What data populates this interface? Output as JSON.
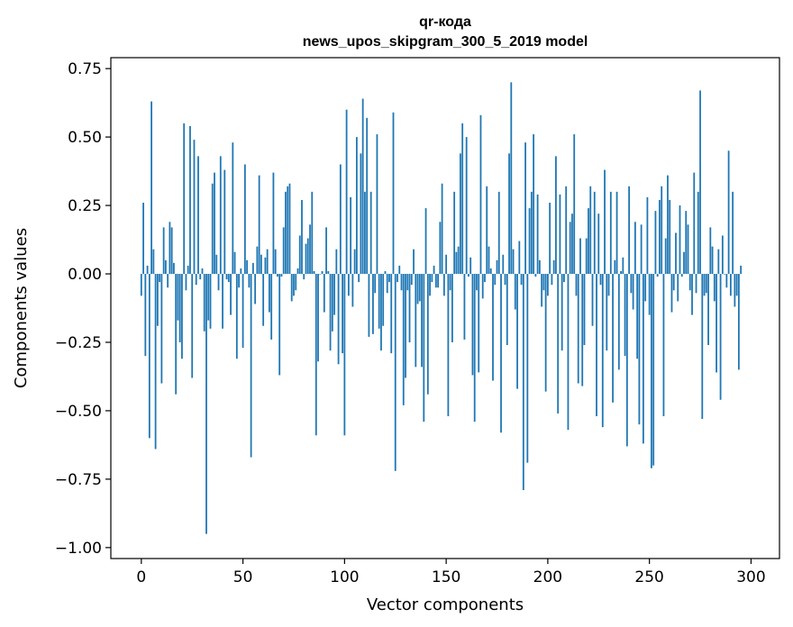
{
  "chart_data": {
    "type": "bar",
    "title_lines": [
      "qr-кода",
      "news_upos_skipgram_300_5_2019 model"
    ],
    "xlabel": "Vector components",
    "ylabel": "Components values",
    "xlim": [
      -15,
      314
    ],
    "ylim": [
      -1.04,
      0.79
    ],
    "xticks": [
      0,
      50,
      100,
      150,
      200,
      250,
      300
    ],
    "xtick_labels": [
      "0",
      "50",
      "100",
      "150",
      "200",
      "250",
      "300"
    ],
    "yticks": [
      0.75,
      0.5,
      0.25,
      0.0,
      -0.25,
      -0.5,
      -0.75,
      -1.0
    ],
    "ytick_labels": [
      "0.75",
      "0.50",
      "0.25",
      "0.00",
      "−0.25",
      "−0.50",
      "−0.75",
      "−1.00"
    ],
    "grid": false,
    "bar_color": "#1f77b4",
    "values": [
      -0.08,
      0.26,
      -0.3,
      0.03,
      -0.6,
      0.63,
      0.09,
      -0.64,
      -0.19,
      -0.03,
      -0.4,
      0.17,
      0.05,
      -0.05,
      0.19,
      0.17,
      0.04,
      -0.44,
      -0.17,
      -0.25,
      -0.31,
      0.55,
      -0.06,
      0.03,
      0.54,
      -0.38,
      0.49,
      -0.04,
      0.43,
      -0.02,
      0.02,
      -0.21,
      -0.95,
      -0.17,
      -0.2,
      0.33,
      0.37,
      0.07,
      -0.06,
      0.43,
      -0.2,
      0.38,
      -0.02,
      -0.03,
      -0.15,
      0.48,
      0.08,
      -0.31,
      -0.05,
      0.02,
      -0.27,
      0.4,
      0.05,
      -0.05,
      -0.67,
      0.04,
      -0.11,
      0.1,
      0.36,
      0.07,
      -0.19,
      0.06,
      0.09,
      -0.14,
      -0.24,
      0.37,
      0.09,
      -0.01,
      -0.37,
      -0.01,
      0.17,
      0.3,
      0.32,
      0.33,
      -0.1,
      -0.08,
      -0.06,
      0.02,
      0.14,
      0.27,
      -0.02,
      0.11,
      0.13,
      0.18,
      0.3,
      0.01,
      -0.59,
      -0.32,
      0.0,
      0.01,
      -0.14,
      0.17,
      0.01,
      -0.28,
      -0.21,
      -0.15,
      0.09,
      -0.33,
      0.4,
      -0.29,
      -0.59,
      0.6,
      -0.08,
      0.28,
      -0.12,
      0.09,
      0.5,
      -0.03,
      0.44,
      0.64,
      0.3,
      0.57,
      -0.23,
      0.3,
      -0.22,
      -0.07,
      0.51,
      -0.2,
      -0.28,
      -0.19,
      0.01,
      -0.07,
      -0.03,
      -0.29,
      0.59,
      -0.72,
      -0.03,
      0.03,
      -0.06,
      -0.48,
      -0.38,
      -0.06,
      -0.25,
      -0.04,
      0.09,
      -0.34,
      -0.11,
      -0.1,
      -0.34,
      -0.54,
      0.24,
      -0.44,
      -0.08,
      -0.03,
      0.03,
      -0.05,
      -0.05,
      0.19,
      0.33,
      -0.08,
      0.07,
      -0.52,
      -0.06,
      -0.25,
      0.3,
      0.08,
      0.1,
      0.44,
      0.55,
      -0.24,
      0.5,
      -0.01,
      0.06,
      -0.37,
      -0.54,
      -0.06,
      -0.36,
      0.58,
      -0.09,
      -0.03,
      0.32,
      0.1,
      0.02,
      -0.39,
      -0.04,
      0.05,
      0.3,
      -0.58,
      0.07,
      -0.04,
      -0.26,
      0.44,
      0.7,
      0.09,
      -0.13,
      -0.42,
      0.12,
      -0.04,
      -0.79,
      0.48,
      -0.69,
      0.24,
      0.3,
      0.51,
      -0.01,
      0.29,
      0.05,
      -0.12,
      -0.06,
      -0.43,
      -0.08,
      0.26,
      -0.04,
      0.05,
      0.43,
      -0.51,
      0.29,
      -0.28,
      -0.03,
      0.32,
      -0.57,
      0.19,
      0.22,
      0.51,
      -0.08,
      -0.4,
      0.13,
      -0.41,
      -0.26,
      0.13,
      0.24,
      0.32,
      -0.19,
      0.3,
      -0.52,
      0.22,
      -0.04,
      -0.56,
      0.38,
      -0.28,
      -0.08,
      0.3,
      -0.47,
      0.05,
      0.3,
      -0.35,
      0.01,
      0.06,
      -0.3,
      -0.63,
      0.32,
      -0.07,
      -0.13,
      0.19,
      -0.31,
      -0.55,
      0.18,
      -0.62,
      -0.1,
      0.28,
      -0.15,
      -0.71,
      -0.7,
      0.23,
      -0.01,
      0.27,
      0.32,
      -0.52,
      0.13,
      0.36,
      0.27,
      -0.14,
      -0.06,
      0.15,
      -0.1,
      0.25,
      -0.01,
      0.08,
      0.23,
      0.18,
      -0.06,
      -0.15,
      0.37,
      -0.07,
      0.3,
      0.67,
      -0.53,
      -0.08,
      -0.07,
      -0.26,
      0.17,
      0.1,
      -0.1,
      -0.36,
      0.09,
      -0.46,
      0.14,
      0.0,
      -0.05,
      0.45,
      -0.08,
      0.3,
      -0.12,
      -0.08,
      -0.35,
      0.03
    ]
  }
}
